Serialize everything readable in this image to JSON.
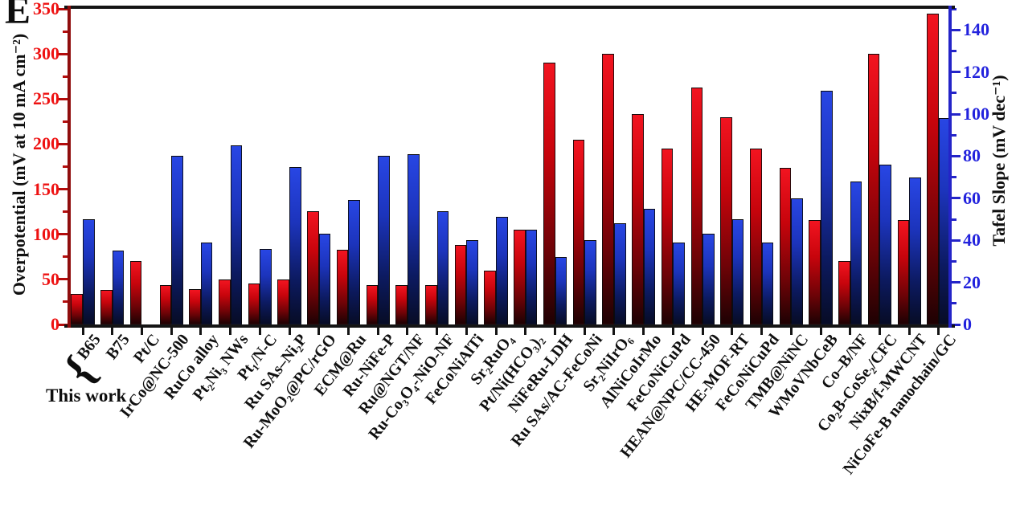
{
  "panel": {
    "label": "E"
  },
  "annotations": {
    "this_work": "This work",
    "brace_glyph": "{"
  },
  "chart_data": {
    "type": "bar",
    "dual_axis": true,
    "grid": false,
    "legend": "none",
    "categories": [
      "B65",
      "B75",
      "Pt/C",
      "IrCo@NC-500",
      "RuCo alloy",
      "Pt₂Ni₃ NWs",
      "Pt₁/N-C",
      "Ru SAs–Ni₂P",
      "Ru-MoO₂@PC/rGO",
      "ECM@Ru",
      "Ru-NiFe-P",
      "Ru@NGT/NF",
      "Ru-Co₃O₄-NiO-NF",
      "FeCoNiAlTi",
      "Sr₂RuO₄",
      "Pt/Ni(HCO₃)₂",
      "NiFeRu-LDH",
      "Ru SAs/AC-FeCoNi",
      "Sr₂NiIrO₆",
      "AlNiCoIrMo",
      "FeCoNiCuPd",
      "HEAN@NPC/CC-450",
      "HE-MOF-RT",
      "FeCoNiCuPd",
      "TMB@NiNC",
      "WMoVNbCeB",
      "Co–B/NF",
      "Co₂B-CoSe₂/CFC",
      "NixB/f-MWCNT",
      "NiCoFe-B nanochain/GC"
    ],
    "series": [
      {
        "name": "Overpotential",
        "axis": "left",
        "unit": "mV at 10 mA cm⁻²",
        "gradient": [
          "#f21420",
          "#c7040c",
          "#6e0307",
          "#1e0103"
        ],
        "values": [
          34,
          38,
          70,
          44,
          39,
          50,
          45,
          50,
          126,
          83,
          44,
          44,
          44,
          88,
          60,
          105,
          290,
          205,
          300,
          233,
          195,
          263,
          230,
          195,
          174,
          116,
          70,
          300,
          116,
          345
        ]
      },
      {
        "name": "Tafel Slope",
        "axis": "right",
        "unit": "mV dec⁻¹",
        "gradient": [
          "#2846e4",
          "#1c34bc",
          "#0c1a60",
          "#070c26"
        ],
        "values": [
          50,
          35,
          null,
          80,
          39,
          85,
          36,
          75,
          43,
          59,
          80,
          81,
          54,
          40,
          51,
          45,
          32,
          40,
          48,
          55,
          39,
          43,
          50,
          39,
          60,
          111,
          68,
          76,
          70,
          98
        ]
      }
    ],
    "left_axis": {
      "title": "Overpotential (mV at 10 mA cm⁻²)",
      "min": 0,
      "max": 350,
      "major_step": 50,
      "minor_step": 25,
      "label_color": "#ee1111",
      "spine_color": "#8f0d0d",
      "tick_color": "#b40d0d"
    },
    "right_axis": {
      "title": "Tafel Slope (mV dec⁻¹)",
      "min": 0,
      "max": 150,
      "major_step": 20,
      "minor_step": 10,
      "max_labeled": 140,
      "label_color": "#2222dd",
      "spine_color": "#2424c8",
      "tick_color": "#2424c8"
    },
    "x_axis": {
      "spine_color": "#141414",
      "tick_color": "#141414",
      "label_color": "#101010",
      "tick_label_angle_deg": -52
    }
  }
}
